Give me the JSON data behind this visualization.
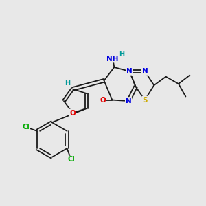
{
  "bg_color": "#e8e8e8",
  "atom_colors": {
    "C": "#1a1a1a",
    "N": "#0000e0",
    "O": "#e00000",
    "S": "#ccaa00",
    "Cl": "#00aa00",
    "H": "#009999",
    "bond": "#1a1a1a"
  },
  "figsize": [
    3.0,
    3.0
  ],
  "dpi": 100
}
